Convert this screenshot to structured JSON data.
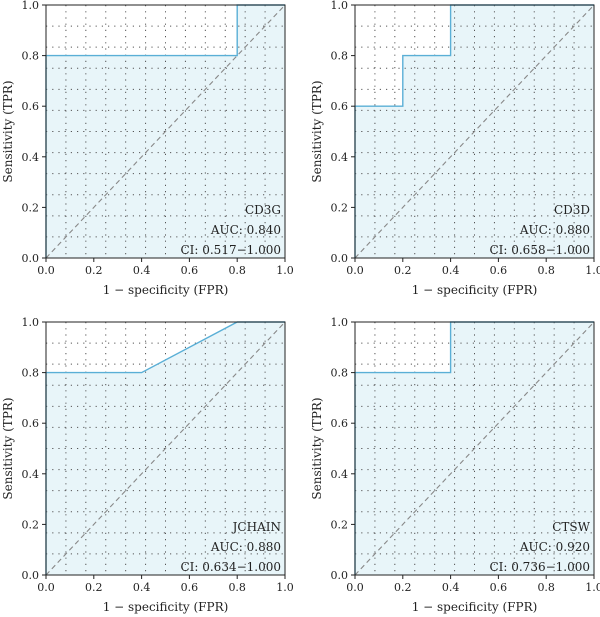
{
  "chart_data": [
    {
      "type": "line",
      "xlabel": "1 − specificity (FPR)",
      "ylabel": "Sensitivity (TPR)",
      "xlim": [
        0,
        1
      ],
      "ylim": [
        0,
        1
      ],
      "xticks": [
        "0.0",
        "0.2",
        "0.4",
        "0.6",
        "0.8",
        "1.0"
      ],
      "yticks": [
        "0.0",
        "0.2",
        "0.4",
        "0.6",
        "0.8",
        "1.0"
      ],
      "grid": true,
      "x": [
        0,
        0,
        0.8,
        0.8,
        1.0
      ],
      "y": [
        0,
        0.8,
        0.8,
        1.0,
        1.0
      ],
      "annotation": {
        "name": "CD3G",
        "auc": "AUC: 0.840",
        "ci": "CI: 0.517−1.000"
      },
      "colors": {
        "line": "#5aafd6",
        "fill": "#e8f5f9",
        "diagonal": "#888888"
      }
    },
    {
      "type": "line",
      "xlabel": "1 − specificity (FPR)",
      "ylabel": "Sensitivity (TPR)",
      "xlim": [
        0,
        1
      ],
      "ylim": [
        0,
        1
      ],
      "xticks": [
        "0.0",
        "0.2",
        "0.4",
        "0.6",
        "0.8",
        "1.0"
      ],
      "yticks": [
        "0.0",
        "0.2",
        "0.4",
        "0.6",
        "0.8",
        "1.0"
      ],
      "grid": true,
      "x": [
        0,
        0,
        0.2,
        0.2,
        0.4,
        0.4,
        1.0
      ],
      "y": [
        0,
        0.6,
        0.6,
        0.8,
        0.8,
        1.0,
        1.0
      ],
      "annotation": {
        "name": "CD3D",
        "auc": "AUC: 0.880",
        "ci": "CI: 0.658−1.000"
      },
      "colors": {
        "line": "#5aafd6",
        "fill": "#e8f5f9",
        "diagonal": "#888888"
      }
    },
    {
      "type": "line",
      "xlabel": "1 − specificity (FPR)",
      "ylabel": "Sensitivity (TPR)",
      "xlim": [
        0,
        1
      ],
      "ylim": [
        0,
        1
      ],
      "xticks": [
        "0.0",
        "0.2",
        "0.4",
        "0.6",
        "0.8",
        "1.0"
      ],
      "yticks": [
        "0.0",
        "0.2",
        "0.4",
        "0.6",
        "0.8",
        "1.0"
      ],
      "grid": true,
      "x": [
        0,
        0,
        0.4,
        0.8,
        1.0
      ],
      "y": [
        0,
        0.8,
        0.8,
        1.0,
        1.0
      ],
      "annotation": {
        "name": "JCHAIN",
        "auc": "AUC: 0.880",
        "ci": "CI: 0.634−1.000"
      },
      "colors": {
        "line": "#5aafd6",
        "fill": "#e8f5f9",
        "diagonal": "#888888"
      }
    },
    {
      "type": "line",
      "xlabel": "1 − specificity (FPR)",
      "ylabel": "Sensitivity (TPR)",
      "xlim": [
        0,
        1
      ],
      "ylim": [
        0,
        1
      ],
      "xticks": [
        "0.0",
        "0.2",
        "0.4",
        "0.6",
        "0.8",
        "1.0"
      ],
      "yticks": [
        "0.0",
        "0.2",
        "0.4",
        "0.6",
        "0.8",
        "1.0"
      ],
      "grid": true,
      "x": [
        0,
        0,
        0.4,
        0.4,
        1.0
      ],
      "y": [
        0,
        0.8,
        0.8,
        1.0,
        1.0
      ],
      "annotation": {
        "name": "CTSW",
        "auc": "AUC: 0.920",
        "ci": "CI: 0.736−1.000"
      },
      "colors": {
        "line": "#5aafd6",
        "fill": "#e8f5f9",
        "diagonal": "#888888"
      }
    }
  ]
}
